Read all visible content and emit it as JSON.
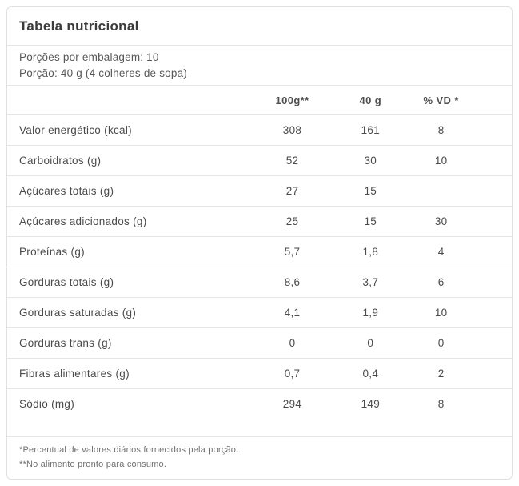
{
  "card": {
    "title": "Tabela nutricional",
    "servings": {
      "per_package": "Porções por embalagem: 10",
      "portion": "Porção: 40 g (4 colheres de sopa)"
    },
    "table": {
      "columns": [
        "100g**",
        "40 g",
        "% VD *"
      ],
      "rows": [
        {
          "label": "Valor energético (kcal)",
          "per100g": "308",
          "per40g": "161",
          "vd": "8"
        },
        {
          "label": "Carboidratos (g)",
          "per100g": "52",
          "per40g": "30",
          "vd": "10"
        },
        {
          "label": "Açúcares totais (g)",
          "per100g": "27",
          "per40g": "15",
          "vd": ""
        },
        {
          "label": "Açúcares adicionados (g)",
          "per100g": "25",
          "per40g": "15",
          "vd": "30"
        },
        {
          "label": "Proteínas (g)",
          "per100g": "5,7",
          "per40g": "1,8",
          "vd": "4"
        },
        {
          "label": "Gorduras totais (g)",
          "per100g": "8,6",
          "per40g": "3,7",
          "vd": "6"
        },
        {
          "label": "Gorduras saturadas (g)",
          "per100g": "4,1",
          "per40g": "1,9",
          "vd": "10"
        },
        {
          "label": "Gorduras trans (g)",
          "per100g": "0",
          "per40g": "0",
          "vd": "0"
        },
        {
          "label": "Fibras alimentares (g)",
          "per100g": "0,7",
          "per40g": "0,4",
          "vd": "2"
        },
        {
          "label": "Sódio (mg)",
          "per100g": "294",
          "per40g": "149",
          "vd": "8"
        }
      ]
    },
    "footnotes": [
      "*Percentual de valores diários fornecidos pela porção.",
      "**No alimento pronto para consumo."
    ],
    "colors": {
      "card_border": "#e0e0e0",
      "divider": "#e6e6e6",
      "title_text": "#3b3b3b",
      "body_text": "#4a4a4a",
      "muted_text": "#707070"
    }
  }
}
